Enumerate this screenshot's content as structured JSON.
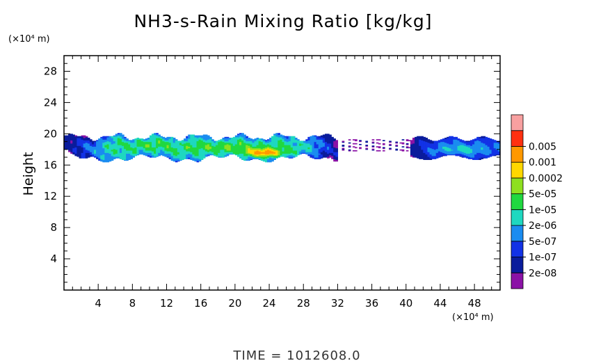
{
  "chart_data": {
    "type": "heatmap",
    "title": "NH3-s-Rain Mixing Ratio [kg/kg]",
    "xlabel": "",
    "ylabel": "Height",
    "x_unit": "(×10⁴ m)",
    "y_unit": "(×10⁴ m)",
    "xlim": [
      0,
      51
    ],
    "ylim": [
      0,
      30
    ],
    "x_ticks": [
      4,
      8,
      12,
      16,
      20,
      24,
      28,
      32,
      36,
      40,
      44,
      48
    ],
    "y_ticks": [
      4,
      8,
      12,
      16,
      20,
      24,
      28
    ],
    "time_label": "TIME = 1012608.0",
    "colorbar": {
      "levels": [
        "2e-08",
        "1e-07",
        "5e-07",
        "2e-06",
        "1e-05",
        "5e-05",
        "0.0002",
        "0.001",
        "0.005"
      ],
      "colors": [
        "#8b12a6",
        "#0a1c9c",
        "#1232e6",
        "#1a8cf0",
        "#1ed8c0",
        "#20d840",
        "#8ee020",
        "#ffd800",
        "#ff9800",
        "#ff3010",
        "#f8a0a0"
      ]
    },
    "regions": [
      {
        "name": "main-cloud-band",
        "x_range": [
          0.5,
          32
        ],
        "y_range": [
          16.5,
          20.2
        ],
        "max_level": "0.001",
        "peak_x": 23.5,
        "peak_y": 17.6
      },
      {
        "name": "right-cloud-band",
        "x_range": [
          40.5,
          51
        ],
        "y_range": [
          16.8,
          20.0
        ],
        "max_level": "5e-05"
      },
      {
        "name": "sparse-fragments",
        "x_range": [
          32,
          40.5
        ],
        "y_range": [
          17.8,
          19.2
        ],
        "max_level": "1e-07"
      }
    ]
  }
}
